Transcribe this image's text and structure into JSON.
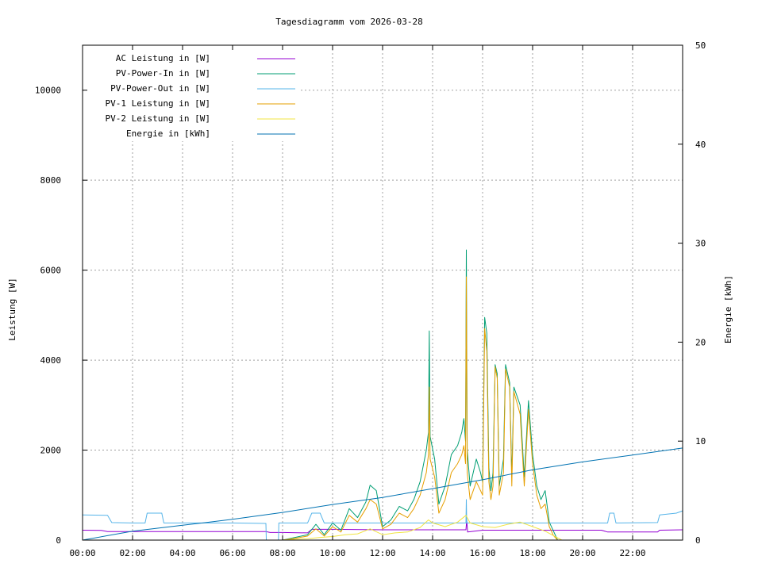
{
  "chart_data": {
    "type": "line",
    "title": "Tagesdiagramm vom 2026-03-28",
    "ylabel": "Leistung [W]",
    "y2label": "Energie [kWh]",
    "xlabel": "",
    "xlim": [
      "00:00",
      "24:00"
    ],
    "ylim": [
      0,
      11000
    ],
    "y2lim": [
      0,
      50
    ],
    "x_ticks": [
      "00:00",
      "02:00",
      "04:00",
      "06:00",
      "08:00",
      "10:00",
      "12:00",
      "14:00",
      "16:00",
      "18:00",
      "20:00",
      "22:00"
    ],
    "y_ticks": [
      0,
      2000,
      4000,
      6000,
      8000,
      10000
    ],
    "y2_ticks": [
      0,
      10,
      20,
      30,
      40,
      50
    ],
    "grid": true,
    "legend_position": "top-left",
    "series": [
      {
        "name": "AC Leistung in [W]",
        "axis": "left",
        "color": "#9400d3",
        "points": [
          [
            "00:00",
            220
          ],
          [
            "00:45",
            215
          ],
          [
            "01:00",
            190
          ],
          [
            "02:00",
            190
          ],
          [
            "04:00",
            190
          ],
          [
            "06:00",
            190
          ],
          [
            "07:20",
            190
          ],
          [
            "07:30",
            170
          ],
          [
            "08:00",
            170
          ],
          [
            "09:00",
            160
          ],
          [
            "09:10",
            240
          ],
          [
            "10:00",
            240
          ],
          [
            "12:00",
            230
          ],
          [
            "14:00",
            230
          ],
          [
            "15:20",
            230
          ],
          [
            "15:22",
            450
          ],
          [
            "15:24",
            180
          ],
          [
            "16:00",
            220
          ],
          [
            "18:00",
            220
          ],
          [
            "20:00",
            220
          ],
          [
            "20:45",
            220
          ],
          [
            "21:00",
            180
          ],
          [
            "22:00",
            180
          ],
          [
            "23:00",
            180
          ],
          [
            "23:05",
            220
          ],
          [
            "24:00",
            230
          ]
        ]
      },
      {
        "name": "PV-Power-In in [W]",
        "axis": "left",
        "color": "#009e73",
        "points": [
          [
            "08:00",
            0
          ],
          [
            "08:30",
            60
          ],
          [
            "09:00",
            120
          ],
          [
            "09:20",
            350
          ],
          [
            "09:40",
            120
          ],
          [
            "10:00",
            380
          ],
          [
            "10:20",
            220
          ],
          [
            "10:40",
            700
          ],
          [
            "11:00",
            500
          ],
          [
            "11:20",
            850
          ],
          [
            "11:30",
            1220
          ],
          [
            "11:45",
            1100
          ],
          [
            "12:00",
            300
          ],
          [
            "12:20",
            450
          ],
          [
            "12:40",
            750
          ],
          [
            "13:00",
            650
          ],
          [
            "13:15",
            900
          ],
          [
            "13:30",
            1300
          ],
          [
            "13:45",
            2000
          ],
          [
            "13:50",
            2400
          ],
          [
            "13:52",
            4650
          ],
          [
            "13:54",
            2300
          ],
          [
            "14:05",
            1800
          ],
          [
            "14:15",
            800
          ],
          [
            "14:30",
            1200
          ],
          [
            "14:45",
            1900
          ],
          [
            "15:00",
            2100
          ],
          [
            "15:10",
            2400
          ],
          [
            "15:15",
            2700
          ],
          [
            "15:19",
            2200
          ],
          [
            "15:21",
            6450
          ],
          [
            "15:23",
            2000
          ],
          [
            "15:30",
            1200
          ],
          [
            "15:45",
            1800
          ],
          [
            "15:55",
            1500
          ],
          [
            "16:00",
            1300
          ],
          [
            "16:05",
            4950
          ],
          [
            "16:10",
            4600
          ],
          [
            "16:15",
            1600
          ],
          [
            "16:20",
            1100
          ],
          [
            "16:25",
            1500
          ],
          [
            "16:30",
            3900
          ],
          [
            "16:35",
            3700
          ],
          [
            "16:40",
            1200
          ],
          [
            "16:50",
            1800
          ],
          [
            "16:55",
            3900
          ],
          [
            "17:00",
            3700
          ],
          [
            "17:05",
            3500
          ],
          [
            "17:10",
            1400
          ],
          [
            "17:15",
            3400
          ],
          [
            "17:30",
            3000
          ],
          [
            "17:40",
            1400
          ],
          [
            "17:50",
            3100
          ],
          [
            "18:00",
            1900
          ],
          [
            "18:10",
            1200
          ],
          [
            "18:20",
            900
          ],
          [
            "18:30",
            1100
          ],
          [
            "18:40",
            400
          ],
          [
            "18:50",
            200
          ],
          [
            "19:00",
            0
          ]
        ]
      },
      {
        "name": "PV-Power-Out in [W]",
        "axis": "left",
        "color": "#56b4e9",
        "points": [
          [
            "00:00",
            560
          ],
          [
            "01:00",
            550
          ],
          [
            "01:10",
            390
          ],
          [
            "02:00",
            380
          ],
          [
            "02:30",
            380
          ],
          [
            "02:35",
            600
          ],
          [
            "03:10",
            600
          ],
          [
            "03:15",
            380
          ],
          [
            "06:00",
            380
          ],
          [
            "07:20",
            370
          ],
          [
            "07:21",
            0
          ],
          [
            "07:50",
            0
          ],
          [
            "07:51",
            380
          ],
          [
            "08:30",
            380
          ],
          [
            "09:00",
            380
          ],
          [
            "09:10",
            600
          ],
          [
            "09:30",
            600
          ],
          [
            "09:40",
            380
          ],
          [
            "12:00",
            380
          ],
          [
            "14:00",
            380
          ],
          [
            "15:20",
            380
          ],
          [
            "15:21",
            900
          ],
          [
            "15:22",
            380
          ],
          [
            "18:00",
            380
          ],
          [
            "20:00",
            380
          ],
          [
            "21:00",
            380
          ],
          [
            "21:05",
            600
          ],
          [
            "21:15",
            600
          ],
          [
            "21:20",
            380
          ],
          [
            "23:00",
            390
          ],
          [
            "23:05",
            560
          ],
          [
            "23:45",
            600
          ],
          [
            "24:00",
            650
          ]
        ]
      },
      {
        "name": "PV-1 Leistung in [W]",
        "axis": "left",
        "color": "#e69f00",
        "points": [
          [
            "08:00",
            0
          ],
          [
            "08:30",
            40
          ],
          [
            "09:00",
            90
          ],
          [
            "09:20",
            250
          ],
          [
            "09:40",
            90
          ],
          [
            "10:00",
            300
          ],
          [
            "10:20",
            180
          ],
          [
            "10:40",
            550
          ],
          [
            "11:00",
            400
          ],
          [
            "11:20",
            700
          ],
          [
            "11:30",
            900
          ],
          [
            "11:45",
            800
          ],
          [
            "12:00",
            250
          ],
          [
            "12:20",
            350
          ],
          [
            "12:40",
            600
          ],
          [
            "13:00",
            500
          ],
          [
            "13:15",
            700
          ],
          [
            "13:30",
            1000
          ],
          [
            "13:45",
            1500
          ],
          [
            "13:50",
            1900
          ],
          [
            "13:52",
            3400
          ],
          [
            "13:54",
            1800
          ],
          [
            "14:05",
            1400
          ],
          [
            "14:15",
            600
          ],
          [
            "14:30",
            900
          ],
          [
            "14:45",
            1500
          ],
          [
            "15:00",
            1700
          ],
          [
            "15:10",
            1900
          ],
          [
            "15:15",
            2100
          ],
          [
            "15:19",
            1700
          ],
          [
            "15:21",
            5850
          ],
          [
            "15:23",
            1500
          ],
          [
            "15:30",
            900
          ],
          [
            "15:45",
            1300
          ],
          [
            "15:55",
            1100
          ],
          [
            "16:00",
            1000
          ],
          [
            "16:05",
            4700
          ],
          [
            "16:10",
            4200
          ],
          [
            "16:15",
            1300
          ],
          [
            "16:20",
            900
          ],
          [
            "16:25",
            1200
          ],
          [
            "16:30",
            3850
          ],
          [
            "16:35",
            3600
          ],
          [
            "16:40",
            1000
          ],
          [
            "16:50",
            1500
          ],
          [
            "16:55",
            3800
          ],
          [
            "17:00",
            3600
          ],
          [
            "17:05",
            3400
          ],
          [
            "17:10",
            1200
          ],
          [
            "17:15",
            3300
          ],
          [
            "17:30",
            2800
          ],
          [
            "17:40",
            1200
          ],
          [
            "17:50",
            2900
          ],
          [
            "18:00",
            1700
          ],
          [
            "18:10",
            1000
          ],
          [
            "18:20",
            700
          ],
          [
            "18:30",
            800
          ],
          [
            "18:40",
            300
          ],
          [
            "18:50",
            100
          ],
          [
            "19:00",
            0
          ]
        ]
      },
      {
        "name": "PV-2 Leistung in [W]",
        "axis": "left",
        "color": "#f0e442",
        "points": [
          [
            "08:00",
            0
          ],
          [
            "08:30",
            20
          ],
          [
            "09:00",
            30
          ],
          [
            "09:30",
            60
          ],
          [
            "10:00",
            80
          ],
          [
            "10:30",
            120
          ],
          [
            "11:00",
            140
          ],
          [
            "11:30",
            250
          ],
          [
            "12:00",
            120
          ],
          [
            "12:30",
            160
          ],
          [
            "13:00",
            180
          ],
          [
            "13:30",
            280
          ],
          [
            "13:50",
            450
          ],
          [
            "14:00",
            380
          ],
          [
            "14:30",
            300
          ],
          [
            "15:00",
            400
          ],
          [
            "15:20",
            550
          ],
          [
            "15:30",
            380
          ],
          [
            "16:00",
            300
          ],
          [
            "16:30",
            280
          ],
          [
            "17:00",
            350
          ],
          [
            "17:30",
            400
          ],
          [
            "18:00",
            300
          ],
          [
            "18:30",
            200
          ],
          [
            "19:00",
            50
          ],
          [
            "19:10",
            0
          ]
        ]
      },
      {
        "name": "Energie in [kWh]",
        "axis": "right",
        "color": "#0072b2",
        "points": [
          [
            "00:00",
            0
          ],
          [
            "02:00",
            0.9
          ],
          [
            "04:00",
            1.5
          ],
          [
            "06:00",
            2.1
          ],
          [
            "08:00",
            2.8
          ],
          [
            "10:00",
            3.6
          ],
          [
            "12:00",
            4.3
          ],
          [
            "14:00",
            5.2
          ],
          [
            "16:00",
            6.1
          ],
          [
            "18:00",
            7.1
          ],
          [
            "20:00",
            7.9
          ],
          [
            "22:00",
            8.6
          ],
          [
            "24:00",
            9.3
          ]
        ]
      }
    ]
  }
}
